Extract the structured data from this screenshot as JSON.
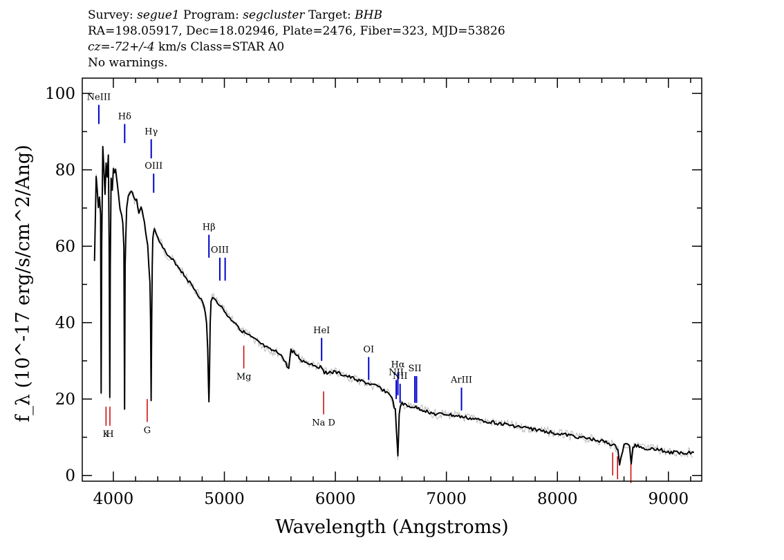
{
  "header": {
    "survey_label": "Survey:",
    "survey": "segue1",
    "program_label": "Program:",
    "program": "segcluster",
    "target_label": "Target:",
    "target": "BHB",
    "line2": "RA=198.05917, Dec=18.02946, Plate=2476, Fiber=323, MJD=53826",
    "cz": "cz=-72+/-4",
    "cz_unit_class": "km/s Class=STAR A0",
    "warnings": "No warnings."
  },
  "chart_data": {
    "type": "line",
    "xlabel": "Wavelength (Angstroms)",
    "ylabel": "f_λ (10^-17 erg/s/cm^2/Ang)",
    "xlim": [
      3720,
      9300
    ],
    "ylim": [
      -1.5,
      104
    ],
    "xticks": [
      4000,
      5000,
      6000,
      7000,
      8000,
      9000
    ],
    "xtick_labels": [
      "4000",
      "5000",
      "6000",
      "7000",
      "8000",
      "9000"
    ],
    "yticks": [
      0,
      20,
      40,
      60,
      80,
      100
    ],
    "ytick_labels": [
      "0",
      "20",
      "40",
      "60",
      "80",
      "100"
    ],
    "grid": false,
    "colors": {
      "spectrum": "#000000",
      "error": "#bbbbbb",
      "emission": "#0000cc",
      "absorption": "#cc0000"
    },
    "series": [
      {
        "x": [
          3830,
          3845,
          3855,
          3865,
          3875,
          3885,
          3890,
          3895,
          3905,
          3915,
          3925,
          3935,
          3945,
          3955,
          3962,
          3968,
          3972,
          3980,
          3990,
          4000,
          4010,
          4020,
          4030,
          4045,
          4060,
          4075,
          4085,
          4095,
          4101,
          4106,
          4112,
          4120,
          4135,
          4150,
          4170,
          4190,
          4210,
          4230,
          4250,
          4270,
          4290,
          4310,
          4320,
          4330,
          4335,
          4340,
          4345,
          4350,
          4355,
          4362,
          4370,
          4385,
          4400,
          4430,
          4460,
          4500,
          4550,
          4600,
          4650,
          4700,
          4750,
          4790,
          4820,
          4840,
          4850,
          4857,
          4861,
          4865,
          4872,
          4880,
          4895,
          4910,
          4950,
          5000,
          5050,
          5100,
          5150,
          5200,
          5300,
          5400,
          5500,
          5580,
          5600,
          5700,
          5800,
          5890,
          5900,
          6000,
          6100,
          6200,
          6300,
          6400,
          6450,
          6500,
          6520,
          6540,
          6550,
          6557,
          6563,
          6569,
          6575,
          6585,
          6600,
          6650,
          6700,
          6800,
          6900,
          7000,
          7200,
          7400,
          7600,
          7800,
          8000,
          8200,
          8400,
          8500,
          8545,
          8560,
          8600,
          8650,
          8665,
          8680,
          8700,
          8800,
          8900,
          9000,
          9100,
          9200,
          9230
        ],
        "y": [
          56,
          78,
          75,
          70,
          73,
          68,
          22,
          60,
          86,
          80,
          74,
          82,
          78,
          84,
          60,
          20,
          55,
          78,
          75,
          80,
          79,
          80,
          78,
          74,
          70,
          68,
          66,
          60,
          17,
          55,
          62,
          70,
          73,
          74,
          74,
          72,
          72,
          69,
          70,
          68,
          64,
          60,
          55,
          50,
          40,
          20,
          40,
          55,
          62,
          64,
          65,
          63,
          62,
          61,
          59,
          57,
          56,
          54,
          52,
          50,
          48,
          46,
          44,
          40,
          33,
          23,
          19,
          25,
          40,
          46,
          47,
          46,
          45,
          43,
          41,
          40,
          38,
          37,
          35,
          33,
          32,
          28,
          33,
          30,
          29,
          28,
          27,
          27,
          26,
          25,
          24,
          23,
          22,
          21,
          19,
          17,
          12,
          8,
          5,
          10,
          16,
          18,
          19,
          18,
          18,
          17,
          16,
          16,
          15,
          14,
          13,
          12,
          11,
          10,
          9,
          8,
          7,
          3,
          8,
          8,
          3,
          7,
          8,
          7,
          7,
          6,
          6,
          6,
          6
        ]
      }
    ],
    "emission_lines": [
      {
        "label": "NeIII",
        "x": 3869,
        "y_top": 97,
        "y_bot": 92
      },
      {
        "label": "Hδ",
        "x": 4102,
        "y_top": 92,
        "y_bot": 87
      },
      {
        "label": "Hγ",
        "x": 4341,
        "y_top": 88,
        "y_bot": 83
      },
      {
        "label": "OIII",
        "x": 4363,
        "y_top": 79,
        "y_bot": 74
      },
      {
        "label": "Hβ",
        "x": 4861,
        "y_top": 63,
        "y_bot": 57
      },
      {
        "label": "OIII",
        "x": 4959,
        "y_top": 57,
        "y_bot": 51
      },
      {
        "label": "",
        "x": 5007,
        "y_top": 57,
        "y_bot": 51
      },
      {
        "label": "HeI",
        "x": 5876,
        "y_top": 36,
        "y_bot": 30
      },
      {
        "label": "OI",
        "x": 6300,
        "y_top": 31,
        "y_bot": 25
      },
      {
        "label": "NII",
        "x": 6548,
        "y_top": 25,
        "y_bot": 20
      },
      {
        "label": "Hα",
        "x": 6563,
        "y_top": 27,
        "y_bot": 21
      },
      {
        "label": "NII",
        "x": 6583,
        "y_top": 24,
        "y_bot": 19
      },
      {
        "label": "SII",
        "x": 6716,
        "y_top": 26,
        "y_bot": 19
      },
      {
        "label": "",
        "x": 6731,
        "y_top": 26,
        "y_bot": 19
      },
      {
        "label": "ArIII",
        "x": 7136,
        "y_top": 23,
        "y_bot": 17
      }
    ],
    "absorption_lines": [
      {
        "label": "K",
        "x": 3934,
        "y_top": 18,
        "y_bot": 13
      },
      {
        "label": "H",
        "x": 3969,
        "y_top": 18,
        "y_bot": 13
      },
      {
        "label": "G",
        "x": 4305,
        "y_top": 20,
        "y_bot": 14
      },
      {
        "label": "Mg",
        "x": 5175,
        "y_top": 34,
        "y_bot": 28
      },
      {
        "label": "Na D",
        "x": 5894,
        "y_top": 22,
        "y_bot": 16
      },
      {
        "label": "",
        "x": 8498,
        "y_top": 6,
        "y_bot": 0
      },
      {
        "label": "",
        "x": 8542,
        "y_top": 5,
        "y_bot": -1
      },
      {
        "label": "",
        "x": 8662,
        "y_top": 3,
        "y_bot": -2
      }
    ]
  }
}
